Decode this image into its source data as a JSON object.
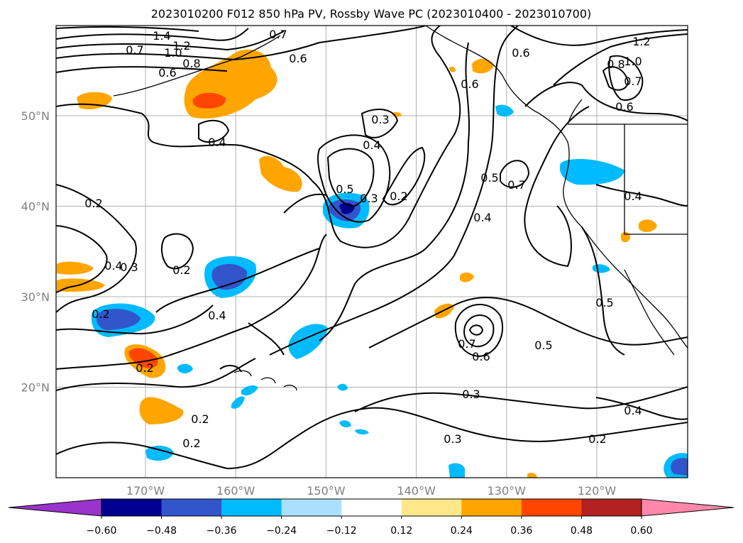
{
  "title": "2023010200 F012 850 hPa PV, Rossby Wave PC (2023010400 - 2023010700)",
  "map": {
    "lat_ticks": [
      {
        "value": 50,
        "label": "50°N"
      },
      {
        "value": 40,
        "label": "40°N"
      },
      {
        "value": 30,
        "label": "30°N"
      },
      {
        "value": 20,
        "label": "20°N"
      }
    ],
    "lon_ticks": [
      {
        "value": -170,
        "label": "170°W"
      },
      {
        "value": -160,
        "label": "160°W"
      },
      {
        "value": -150,
        "label": "150°W"
      },
      {
        "value": -140,
        "label": "140°W"
      },
      {
        "value": -130,
        "label": "130°W"
      },
      {
        "value": -120,
        "label": "120°W"
      }
    ],
    "contour_labels": [
      "1.4",
      "1.2",
      "1.0",
      "0.8",
      "0.7",
      "0.7",
      "0.6",
      "0.6",
      "0.6",
      "0.4",
      "0.3",
      "0.4",
      "0.5",
      "0.3",
      "0.2",
      "0.5",
      "0.4",
      "0.7",
      "0.2",
      "0.4",
      "0.3",
      "0.2",
      "0.4",
      "0.2",
      "0.2",
      "0.2",
      "0.2",
      "0.7",
      "0.6",
      "0.5",
      "0.3",
      "0.3",
      "0.5",
      "0.4",
      "0.2",
      "1.2",
      "1.0",
      "0.8",
      "0.7",
      "0.6",
      "0.4",
      "0.6"
    ]
  },
  "colorbar": {
    "ticks": [
      "−0.60",
      "−0.48",
      "−0.36",
      "−0.24",
      "−0.12",
      "0.12",
      "0.24",
      "0.36",
      "0.48",
      "0.60"
    ],
    "colors": [
      "#000090",
      "#3355cc",
      "#00bbff",
      "#aae0ff",
      "#ffffff",
      "#ffe88a",
      "#ffa500",
      "#ff4500",
      "#b22222"
    ],
    "under_color": "#9933cc",
    "over_color": "#ff88aa"
  }
}
